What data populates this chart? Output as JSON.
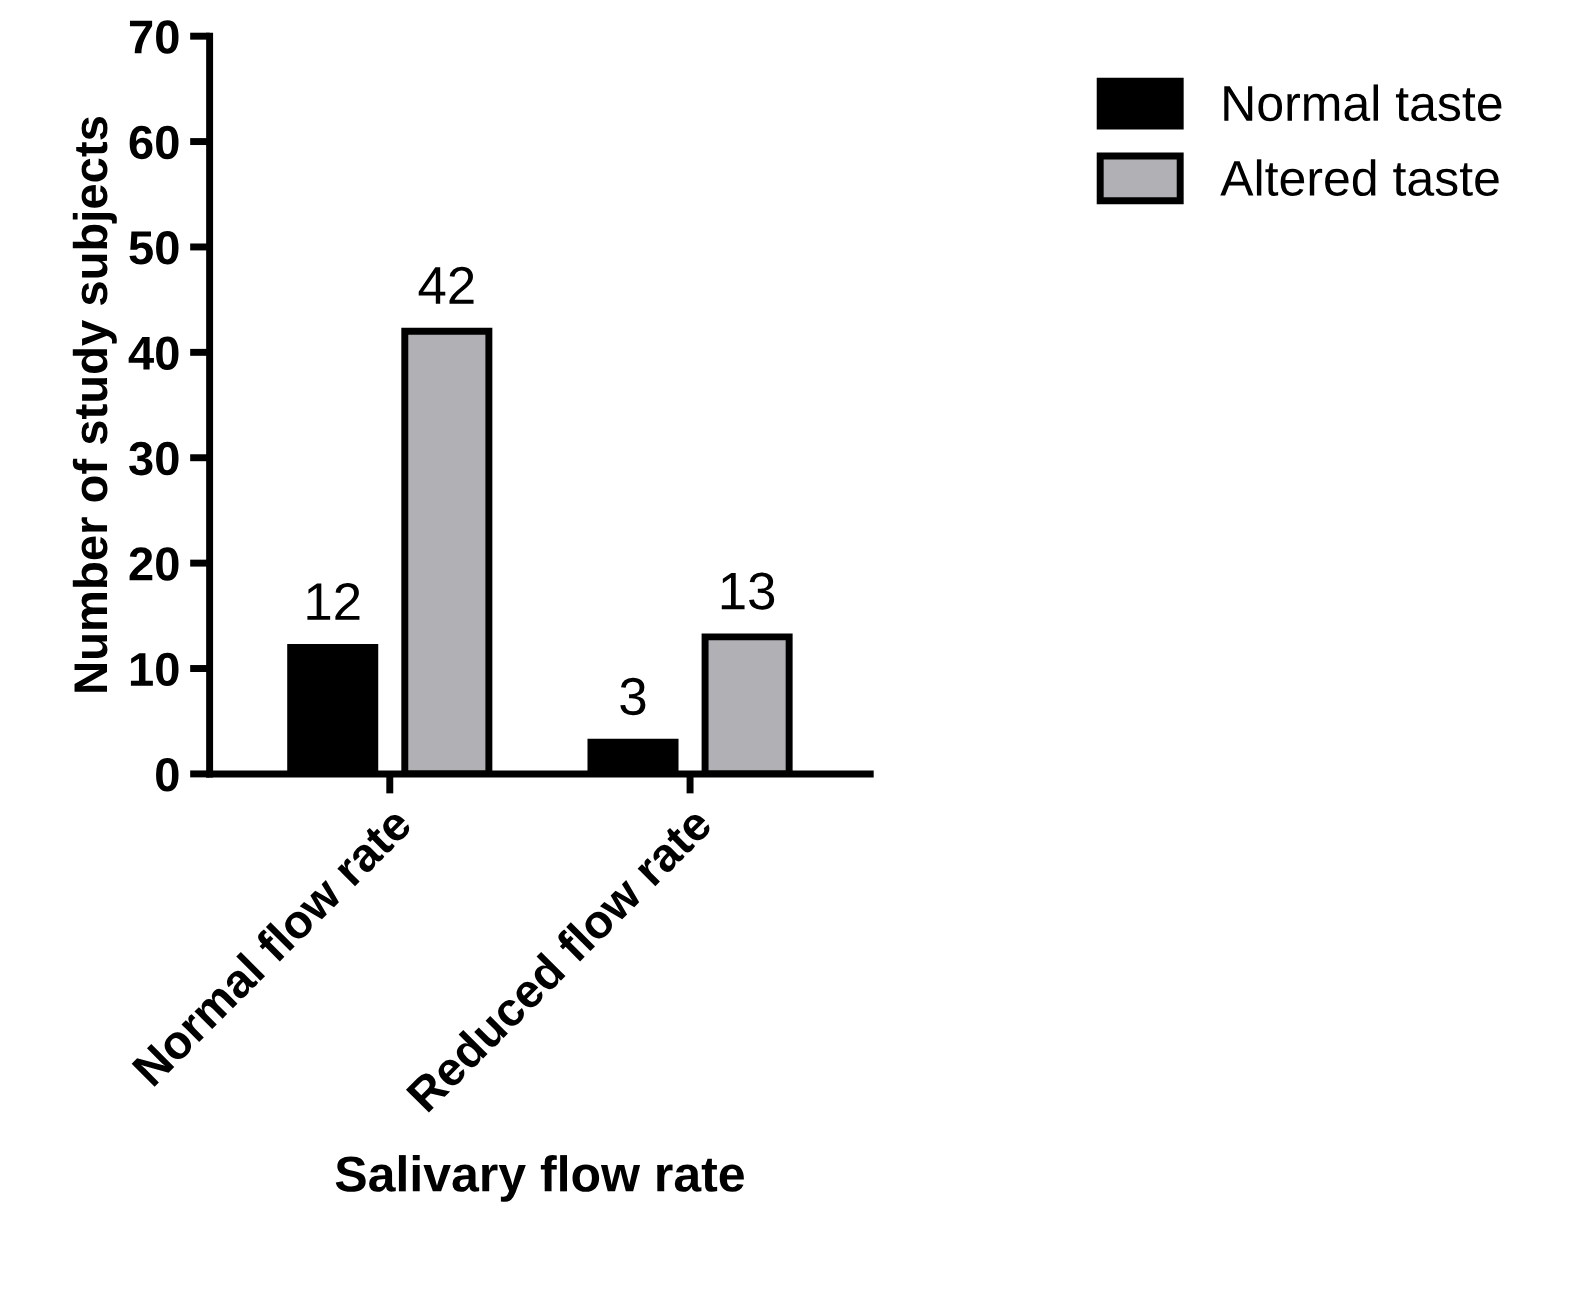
{
  "chart_data": {
    "type": "bar",
    "xlabel": "Salivary flow rate",
    "ylabel": "Number of study subjects",
    "categories": [
      "Normal flow rate",
      "Reduced flow rate"
    ],
    "series": [
      {
        "name": "Normal taste",
        "color": "#000000",
        "values": [
          12,
          3
        ]
      },
      {
        "name": "Altered taste",
        "color": "#b1b1b5",
        "values": [
          42,
          13
        ]
      }
    ],
    "ylim": [
      0,
      70
    ],
    "yticks": [
      0,
      10,
      20,
      30,
      40,
      50,
      60,
      70
    ],
    "data_labels": true,
    "legend": "top right",
    "grid": false
  }
}
